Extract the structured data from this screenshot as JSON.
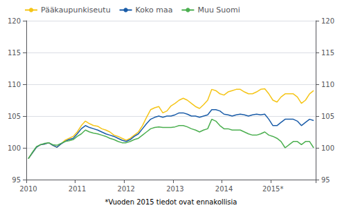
{
  "chart_data": {
    "type": "line",
    "xlabel": "*Vuoden 2015 tiedot ovat ennakollisia",
    "categories": [
      "2010",
      null,
      null,
      null,
      null,
      null,
      null,
      null,
      null,
      null,
      null,
      null,
      "2011",
      null,
      null,
      null,
      null,
      null,
      null,
      null,
      null,
      null,
      null,
      null,
      "2012",
      null,
      null,
      null,
      null,
      null,
      null,
      null,
      null,
      null,
      null,
      null,
      "2013",
      null,
      null,
      null,
      null,
      null,
      null,
      null,
      null,
      null,
      null,
      null,
      "2014",
      null,
      null,
      null,
      null,
      null,
      null,
      null,
      null,
      null,
      null,
      null,
      "2015*",
      null,
      null,
      null,
      null,
      null,
      null,
      null,
      null,
      null,
      null
    ],
    "series": [
      {
        "name": "Pääkaupunkiseutu",
        "color": "#F5C518",
        "values": [
          98.3,
          99.2,
          100.1,
          100.5,
          100.6,
          100.8,
          100.4,
          100.1,
          100.6,
          101.2,
          101.5,
          101.8,
          102.5,
          103.5,
          104.2,
          103.8,
          103.5,
          103.4,
          103.0,
          102.8,
          102.5,
          102.0,
          101.8,
          101.5,
          101.2,
          101.5,
          102.0,
          102.5,
          103.5,
          104.8,
          106.0,
          106.3,
          106.5,
          105.5,
          105.8,
          106.6,
          107.0,
          107.5,
          107.8,
          107.5,
          107.0,
          106.5,
          106.2,
          106.8,
          107.5,
          109.2,
          109.0,
          108.5,
          108.3,
          108.8,
          109.0,
          109.2,
          109.2,
          108.8,
          108.5,
          108.5,
          108.8,
          109.2,
          109.3,
          108.5,
          107.5,
          107.2,
          108.0,
          108.5,
          108.5,
          108.5,
          108.0,
          107.0,
          107.5,
          108.5,
          109.0
        ]
      },
      {
        "name": "Koko maa",
        "color": "#1A5CA8",
        "values": [
          98.3,
          99.2,
          100.1,
          100.5,
          100.6,
          100.8,
          100.4,
          100.1,
          100.6,
          101.0,
          101.3,
          101.5,
          102.2,
          103.0,
          103.5,
          103.2,
          103.0,
          102.8,
          102.5,
          102.2,
          102.0,
          101.8,
          101.5,
          101.2,
          101.0,
          101.3,
          101.8,
          102.2,
          103.0,
          103.8,
          104.5,
          104.8,
          105.0,
          104.8,
          105.0,
          105.0,
          105.2,
          105.5,
          105.5,
          105.3,
          105.0,
          105.0,
          104.8,
          105.0,
          105.2,
          106.0,
          106.0,
          105.8,
          105.3,
          105.2,
          105.0,
          105.2,
          105.3,
          105.2,
          105.0,
          105.2,
          105.3,
          105.2,
          105.3,
          104.5,
          103.5,
          103.5,
          104.0,
          104.5,
          104.5,
          104.5,
          104.2,
          103.5,
          104.0,
          104.5,
          104.3
        ]
      },
      {
        "name": "Muu Suomi",
        "color": "#4CAF50",
        "values": [
          98.3,
          99.3,
          100.2,
          100.5,
          100.7,
          100.8,
          100.5,
          100.4,
          100.7,
          101.0,
          101.1,
          101.3,
          101.8,
          102.2,
          102.8,
          102.5,
          102.3,
          102.2,
          102.0,
          101.8,
          101.5,
          101.3,
          101.0,
          100.8,
          100.8,
          101.0,
          101.3,
          101.5,
          102.0,
          102.5,
          103.0,
          103.2,
          103.3,
          103.2,
          103.2,
          103.2,
          103.3,
          103.5,
          103.5,
          103.3,
          103.0,
          102.8,
          102.5,
          102.8,
          103.0,
          104.5,
          104.2,
          103.5,
          103.0,
          103.0,
          102.8,
          102.8,
          102.8,
          102.5,
          102.2,
          102.0,
          102.0,
          102.2,
          102.5,
          102.0,
          101.8,
          101.5,
          101.0,
          100.0,
          100.5,
          101.0,
          101.0,
          100.5,
          101.0,
          101.0,
          100.0
        ]
      }
    ],
    "ylim": [
      95,
      120
    ],
    "yticks": [
      95,
      100,
      105,
      110,
      115,
      120
    ],
    "y2lim": [
      95,
      120
    ],
    "y2ticks": [
      95,
      100,
      105,
      110,
      115,
      120
    ],
    "grid": true,
    "legend": "upper left"
  }
}
